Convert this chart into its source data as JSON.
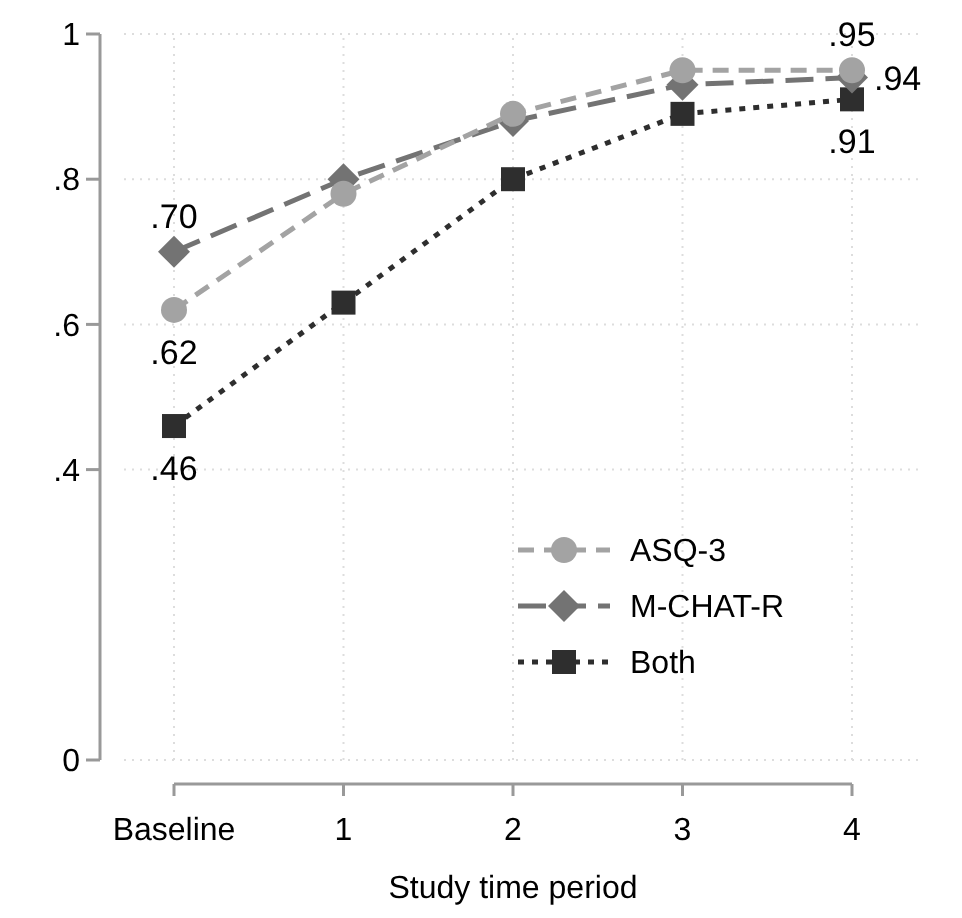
{
  "chart_data": {
    "type": "line",
    "xlabel": "Study time period",
    "categories": [
      "Baseline",
      "1",
      "2",
      "3",
      "4"
    ],
    "ylim": [
      0,
      1
    ],
    "yticks": [
      {
        "value": 0,
        "label": "0"
      },
      {
        "value": 0.4,
        "label": ".4"
      },
      {
        "value": 0.6,
        "label": ".6"
      },
      {
        "value": 0.8,
        "label": ".8"
      },
      {
        "value": 1,
        "label": "1"
      }
    ],
    "grid": true,
    "legend": "bottom right",
    "series": [
      {
        "name": "ASQ-3",
        "color": "#a3a3a3",
        "marker": "circle",
        "line_style": "dashed",
        "values": [
          0.62,
          0.78,
          0.89,
          0.95,
          0.95
        ],
        "value_labels": [
          ".62",
          null,
          null,
          null,
          ".95"
        ]
      },
      {
        "name": "M-CHAT-R",
        "color": "#737373",
        "marker": "diamond",
        "line_style": "longdash",
        "values": [
          0.7,
          0.8,
          0.88,
          0.93,
          0.94
        ],
        "value_labels": [
          ".70",
          null,
          null,
          null,
          ".94"
        ]
      },
      {
        "name": "Both",
        "color": "#2e2e2e",
        "marker": "square",
        "line_style": "dotted",
        "values": [
          0.46,
          0.63,
          0.8,
          0.89,
          0.91
        ],
        "value_labels": [
          ".46",
          null,
          null,
          null,
          ".91"
        ]
      }
    ]
  }
}
